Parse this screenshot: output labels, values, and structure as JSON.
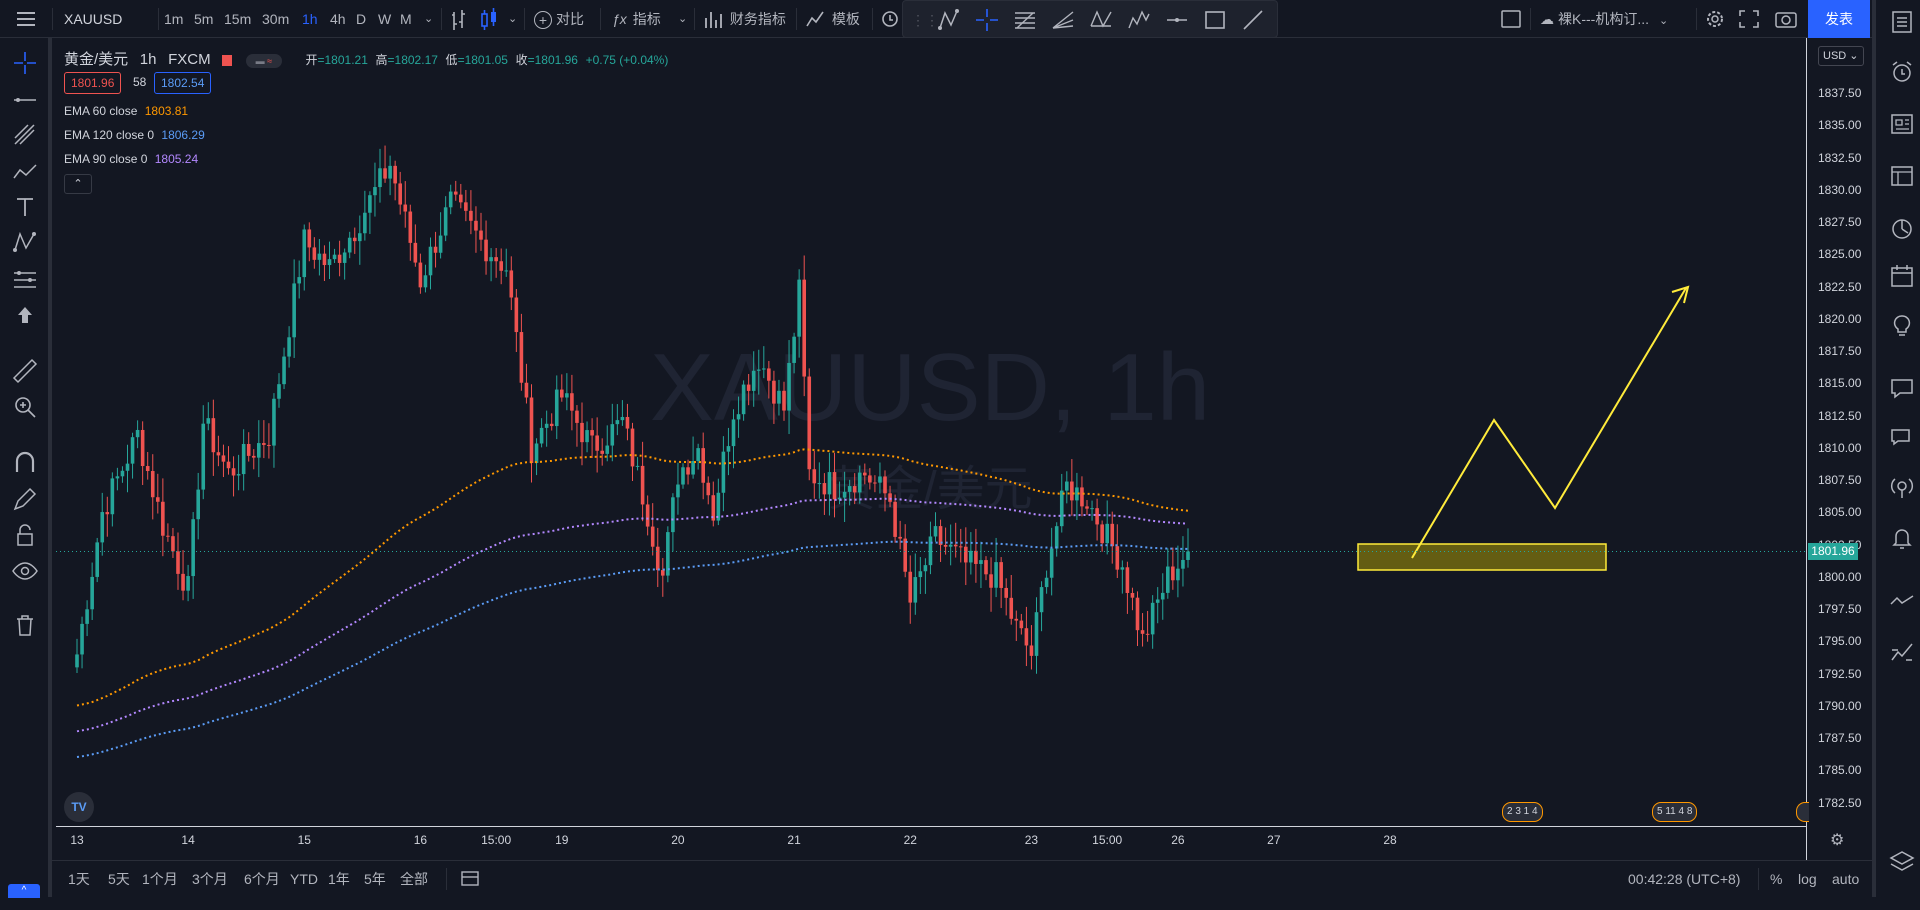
{
  "topbar": {
    "symbol": "XAUUSD",
    "intervals": [
      "1m",
      "5m",
      "15m",
      "30m",
      "1h",
      "4h",
      "D",
      "W",
      "M"
    ],
    "active_interval": "1h",
    "compare_label": "对比",
    "indicators_label": "指标",
    "financials_label": "财务指标",
    "templates_label": "模板",
    "layout_name": "裸K---机构订...",
    "publish_label": "发表"
  },
  "legend": {
    "name": "黄金/美元",
    "interval": "1h",
    "exchange": "FXCM",
    "open_label": "开",
    "open": "=1801.21",
    "high_label": "高",
    "high": "=1802.17",
    "low_label": "低",
    "low": "=1801.05",
    "close_label": "收",
    "close": "=1801.96",
    "change": "+0.75 (+0.04%)",
    "bid": "1801.96",
    "spread": "58",
    "ask": "1802.54",
    "ema": [
      {
        "label": "EMA 60 close",
        "value": "1803.81",
        "color": "#ff9800"
      },
      {
        "label": "EMA 120 close 0",
        "value": "1806.29",
        "color": "#5b9cf6"
      },
      {
        "label": "EMA 90 close 0",
        "value": "1805.24",
        "color": "#b388ff"
      }
    ]
  },
  "watermark": {
    "line1": "XAUUSD, 1h",
    "line2": "黄金/美元"
  },
  "price_axis": {
    "currency": "USD",
    "ticks": [
      "1837.50",
      "1835.00",
      "1832.50",
      "1830.00",
      "1827.50",
      "1825.00",
      "1822.50",
      "1820.00",
      "1817.50",
      "1815.00",
      "1812.50",
      "1810.00",
      "1807.50",
      "1805.00",
      "1802.50",
      "1800.00",
      "1797.50",
      "1795.00",
      "1792.50",
      "1790.00",
      "1787.50",
      "1785.00",
      "1782.50"
    ],
    "last_price": "1801.96"
  },
  "time_axis": {
    "ticks": [
      {
        "label": "13",
        "i": 0
      },
      {
        "label": "14",
        "i": 22
      },
      {
        "label": "15",
        "i": 45
      },
      {
        "label": "16",
        "i": 68
      },
      {
        "label": "15:00",
        "i": 83
      },
      {
        "label": "19",
        "i": 96
      },
      {
        "label": "20",
        "i": 119
      },
      {
        "label": "21",
        "i": 142
      },
      {
        "label": "22",
        "i": 165
      },
      {
        "label": "23",
        "i": 189
      },
      {
        "label": "15:00",
        "i": 204
      },
      {
        "label": "26",
        "i": 218
      },
      {
        "label": "27",
        "i": 237
      },
      {
        "label": "28",
        "i": 260
      }
    ]
  },
  "events": {
    "group1": "2 3 1 4",
    "group2": "5 11 4 8"
  },
  "bottombar": {
    "ranges": [
      "1天",
      "5天",
      "1个月",
      "3个月",
      "6个月",
      "YTD",
      "1年",
      "5年",
      "全部"
    ],
    "time": "00:42:28 (UTC+8)",
    "percent": "%",
    "log": "log",
    "auto": "auto"
  },
  "colors": {
    "up": "#26a69a",
    "down": "#ef5350",
    "bg": "#131722",
    "accent": "#2962ff",
    "ema60": "#ff9800",
    "ema90": "#b388ff",
    "ema120": "#5b9cf6",
    "highlight": "#ffeb3b"
  },
  "chart_data": {
    "type": "candlestick",
    "symbol": "XAUUSD",
    "y_range": [
      1781,
      1840
    ],
    "anchors_close": [
      [
        0,
        1794
      ],
      [
        5,
        1805
      ],
      [
        12,
        1811
      ],
      [
        17,
        1804
      ],
      [
        22,
        1799
      ],
      [
        25,
        1812
      ],
      [
        30,
        1808
      ],
      [
        38,
        1811
      ],
      [
        45,
        1826
      ],
      [
        50,
        1824
      ],
      [
        55,
        1827
      ],
      [
        62,
        1832
      ],
      [
        68,
        1823
      ],
      [
        74,
        1829
      ],
      [
        80,
        1826
      ],
      [
        85,
        1824
      ],
      [
        90,
        1810
      ],
      [
        96,
        1814
      ],
      [
        102,
        1810
      ],
      [
        108,
        1812
      ],
      [
        113,
        1805
      ],
      [
        116,
        1800
      ],
      [
        119,
        1808
      ],
      [
        123,
        1810
      ],
      [
        126,
        1805
      ],
      [
        130,
        1813
      ],
      [
        135,
        1817
      ],
      [
        140,
        1813
      ],
      [
        143,
        1822
      ],
      [
        145,
        1808
      ],
      [
        150,
        1807
      ],
      [
        156,
        1808
      ],
      [
        161,
        1806
      ],
      [
        165,
        1798
      ],
      [
        170,
        1803
      ],
      [
        176,
        1801
      ],
      [
        182,
        1800
      ],
      [
        186,
        1796
      ],
      [
        189,
        1794
      ],
      [
        192,
        1801
      ],
      [
        196,
        1807
      ],
      [
        200,
        1806
      ],
      [
        204,
        1803
      ],
      [
        207,
        1801
      ],
      [
        211,
        1795
      ],
      [
        216,
        1800
      ],
      [
        220,
        1802
      ]
    ]
  }
}
